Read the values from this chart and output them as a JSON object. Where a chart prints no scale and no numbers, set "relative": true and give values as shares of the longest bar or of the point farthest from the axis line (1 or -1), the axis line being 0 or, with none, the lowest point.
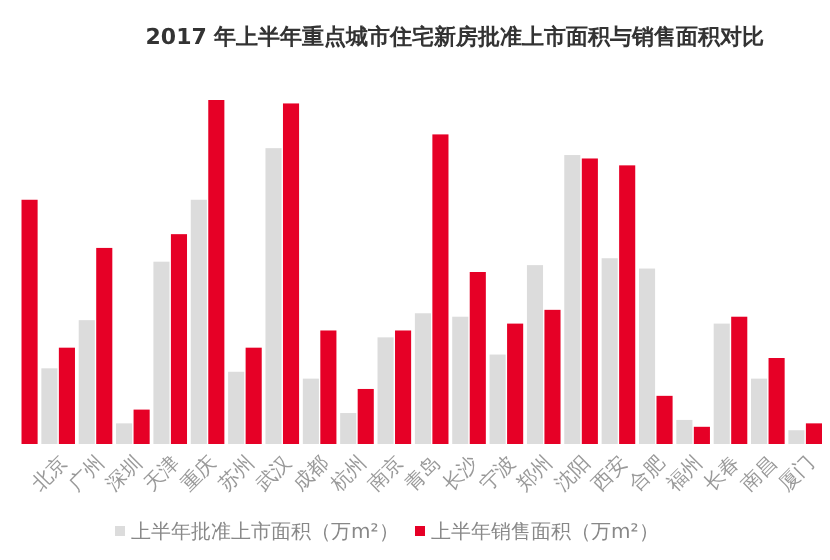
{
  "chart_data": {
    "type": "bar",
    "title": "2017 年上半年重点城市住宅新房批准上市面积与销售面积对比",
    "relative": true,
    "legend": "bottom",
    "categories": [
      null,
      "北京",
      "广州",
      "深圳",
      "天津",
      "重庆",
      "苏州",
      "武汉",
      "成都",
      "杭州",
      "南京",
      "青岛",
      "长沙",
      "宁波",
      "郑州",
      "沈阳",
      "西安",
      "合肥",
      "福州",
      "长春",
      "南昌",
      "厦门"
    ],
    "series": [
      {
        "name": "上半年批准上市面积（万m²）",
        "color": "#dcdcdc",
        "values": [
          null,
          0.22,
          0.36,
          0.06,
          0.53,
          0.71,
          0.21,
          0.86,
          0.19,
          0.09,
          0.31,
          0.38,
          0.37,
          0.26,
          0.52,
          0.84,
          0.54,
          0.51,
          0.07,
          0.35,
          0.19,
          0.04
        ]
      },
      {
        "name": "上半年销售面积（万m²）",
        "color": "#e60026",
        "values": [
          0.71,
          0.28,
          0.57,
          0.1,
          0.61,
          1,
          0.28,
          0.99,
          0.33,
          0.16,
          0.33,
          0.9,
          0.5,
          0.35,
          0.39,
          0.83,
          0.81,
          0.14,
          0.05,
          0.37,
          0.25,
          0.06
        ]
      }
    ]
  }
}
